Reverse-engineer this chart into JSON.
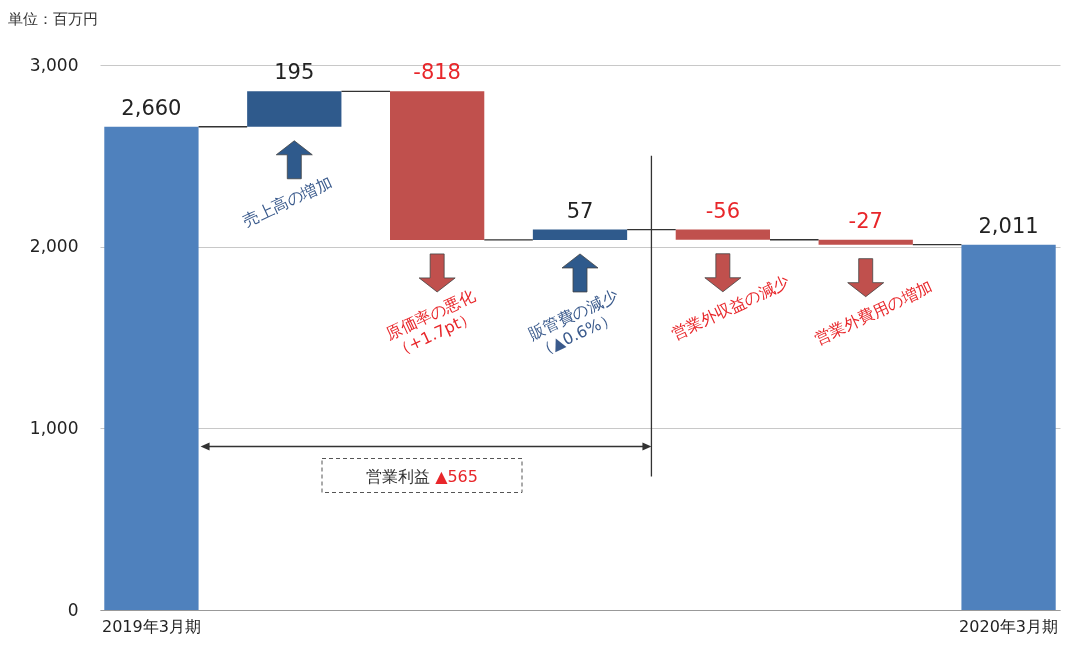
{
  "chart_data": {
    "type": "bar",
    "categories": [
      "2019年3月期",
      null,
      null,
      null,
      null,
      null,
      "2020年3月期"
    ],
    "values": [
      2660,
      195,
      -818,
      57,
      -56,
      -27,
      2011
    ],
    "base": [
      0,
      2660,
      2855,
      2037,
      2094,
      2038,
      0
    ],
    "colors": [
      "#4f81bd",
      "#2f5a8c",
      "#c0504d",
      "#2f5a8c",
      "#c0504d",
      "#c0504d",
      "#4f81bd"
    ],
    "value_labels": [
      "2,660",
      "195",
      "-818",
      "57",
      "-56",
      "-27",
      "2,011"
    ],
    "ylim": [
      0,
      3000
    ],
    "yticks": [
      0,
      {
        "value": 1000,
        "label": "1,000"
      },
      {
        "value": 2000,
        "label": "2,000"
      },
      {
        "value": 3000,
        "label": "3,000"
      }
    ],
    "grid": "y",
    "annotations": [
      "単位：百万円",
      "売上高の増加",
      "原価率の悪化\n（+1.7pt）",
      "販管費の減少\n（▲0.6%）",
      "営業外収益の減少",
      "営業外費用の増加",
      "営業利益 ▲565"
    ]
  }
}
